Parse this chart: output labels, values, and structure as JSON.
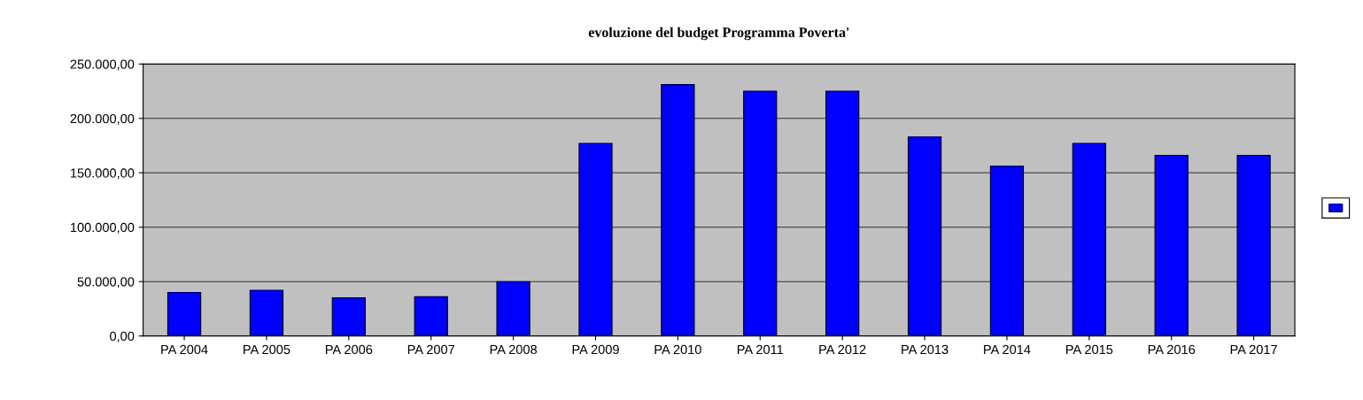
{
  "chart_data": {
    "type": "bar",
    "title": "evoluzione del budget Programma Poverta'",
    "categories": [
      "PA 2004",
      "PA 2005",
      "PA 2006",
      "PA 2007",
      "PA 2008",
      "PA 2009",
      "PA 2010",
      "PA 2011",
      "PA 2012",
      "PA 2013",
      "PA 2014",
      "PA 2015",
      "PA 2016",
      "PA 2017"
    ],
    "series": [
      {
        "color": "#0000ff",
        "values": [
          40000,
          42000,
          35000,
          36000,
          50000,
          177000,
          231000,
          225000,
          225000,
          183000,
          156000,
          177000,
          166000,
          166000
        ]
      }
    ],
    "ylim": [
      0,
      250000
    ],
    "yticks": [
      {
        "value": 0,
        "label": "0,00"
      },
      {
        "value": 50000,
        "label": "50.000,00"
      },
      {
        "value": 100000,
        "label": "100.000,00"
      },
      {
        "value": 150000,
        "label": "150.000,00"
      },
      {
        "value": 200000,
        "label": "200.000,00"
      },
      {
        "value": 250000,
        "label": "250.000,00"
      }
    ],
    "grid": "y"
  }
}
